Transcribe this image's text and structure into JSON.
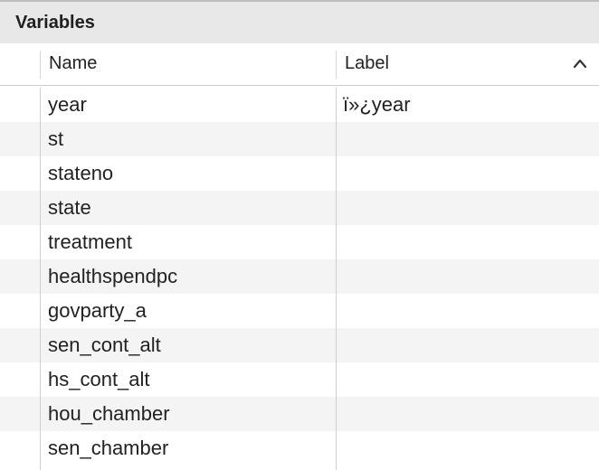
{
  "panel": {
    "title": "Variables"
  },
  "columns": {
    "name": "Name",
    "label": "Label",
    "sort_icon": "chevron-up-icon"
  },
  "rows": [
    {
      "name": "year",
      "label": "ï»¿year"
    },
    {
      "name": "st",
      "label": ""
    },
    {
      "name": "stateno",
      "label": ""
    },
    {
      "name": "state",
      "label": ""
    },
    {
      "name": "treatment",
      "label": ""
    },
    {
      "name": "healthspendpc",
      "label": ""
    },
    {
      "name": "govparty_a",
      "label": ""
    },
    {
      "name": "sen_cont_alt",
      "label": ""
    },
    {
      "name": "hs_cont_alt",
      "label": ""
    },
    {
      "name": "hou_chamber",
      "label": ""
    },
    {
      "name": "sen_chamber",
      "label": ""
    }
  ]
}
